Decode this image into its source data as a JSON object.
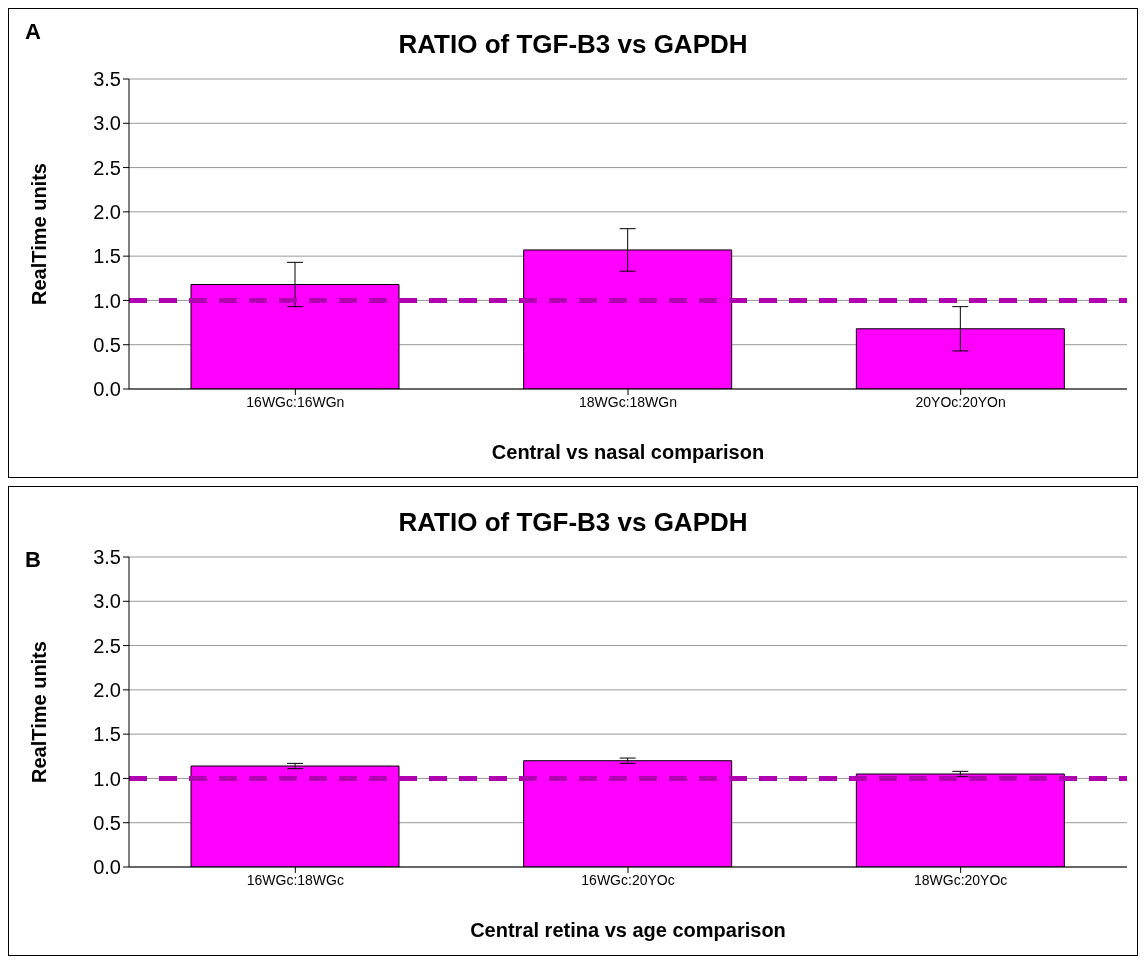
{
  "chart_data": [
    {
      "type": "bar",
      "title": "RATIO of TGF-B3 vs GAPDH",
      "xlabel": "Central vs nasal comparison",
      "ylabel": "RealTime units",
      "annotations": [
        "A"
      ],
      "categories": [
        "16WGc:16WGn",
        "18WGc:18WGn",
        "20YOc:20YOn"
      ],
      "values": [
        1.18,
        1.57,
        0.68
      ],
      "errors": [
        0.25,
        0.24,
        0.25
      ],
      "color": "#ff00ff",
      "ylim": [
        0,
        3.5
      ],
      "yticks": [
        {
          "value": 0,
          "label": "0.0"
        },
        0.5,
        {
          "value": 1,
          "label": "1.0"
        },
        1.5,
        {
          "value": 2,
          "label": "2.0"
        },
        2.5,
        {
          "value": 3,
          "label": "3.0"
        },
        3.5
      ],
      "ref_lines": [
        {
          "axis": "y",
          "value": 1,
          "color": "#b000b0",
          "line_style": "dashed"
        }
      ],
      "grid": "y",
      "legend": false
    },
    {
      "type": "bar",
      "title": "RATIO of TGF-B3 vs GAPDH",
      "xlabel": "Central retina vs age comparison",
      "ylabel": "RealTime units",
      "annotations": [
        "B"
      ],
      "categories": [
        "16WGc:18WGc",
        "16WGc:20YOc",
        "18WGc:20YOc"
      ],
      "values": [
        1.14,
        1.2,
        1.05
      ],
      "errors": [
        0.03,
        0.03,
        0.03
      ],
      "color": "#ff00ff",
      "ylim": [
        0,
        3.5
      ],
      "yticks": [
        {
          "value": 0,
          "label": "0.0"
        },
        0.5,
        {
          "value": 1,
          "label": "1.0"
        },
        1.5,
        {
          "value": 2,
          "label": "2.0"
        },
        2.5,
        {
          "value": 3,
          "label": "3.0"
        },
        3.5
      ],
      "ref_lines": [
        {
          "axis": "y",
          "value": 1,
          "color": "#b000b0",
          "line_style": "dashed"
        }
      ],
      "grid": "y",
      "legend": false
    }
  ]
}
